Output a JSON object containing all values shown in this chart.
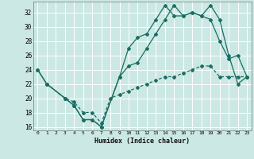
{
  "xlabel": "Humidex (Indice chaleur)",
  "bg_color": "#cbe8e4",
  "line_color": "#1a6e62",
  "grid_color": "#ffffff",
  "xlim": [
    -0.5,
    23.5
  ],
  "ylim": [
    15.5,
    33.5
  ],
  "xticks": [
    0,
    1,
    2,
    3,
    4,
    5,
    6,
    7,
    8,
    9,
    10,
    11,
    12,
    13,
    14,
    15,
    16,
    17,
    18,
    19,
    20,
    21,
    22,
    23
  ],
  "yticks": [
    16,
    18,
    20,
    22,
    24,
    26,
    28,
    30,
    32
  ],
  "series": {
    "line1": {
      "x": [
        0,
        1,
        3,
        4,
        5,
        6,
        7,
        9,
        10,
        11,
        12,
        13,
        14,
        15,
        16,
        17,
        18,
        19,
        20,
        21,
        22,
        23
      ],
      "y": [
        24,
        22,
        20,
        19,
        17,
        17,
        16,
        23,
        27,
        28.5,
        29,
        31,
        33,
        31.5,
        31.5,
        32,
        31.5,
        31,
        28,
        25.5,
        26,
        23
      ]
    },
    "line2": {
      "x": [
        0,
        1,
        3,
        4,
        5,
        6,
        7,
        9,
        10,
        11,
        12,
        13,
        14,
        15,
        16,
        17,
        18,
        19,
        20,
        21,
        22,
        23
      ],
      "y": [
        24,
        22,
        20,
        19,
        17,
        17,
        16,
        23,
        24.5,
        25,
        27,
        29,
        31,
        33,
        31.5,
        32,
        31.5,
        33,
        31,
        26,
        22,
        23
      ]
    },
    "line3": {
      "x": [
        1,
        3,
        4,
        5,
        6,
        7,
        8,
        9,
        10,
        11,
        12,
        13,
        14,
        15,
        16,
        17,
        18,
        19,
        20,
        21,
        22,
        23
      ],
      "y": [
        22,
        20,
        19.5,
        18,
        18,
        16.5,
        20,
        20.5,
        21,
        21.5,
        22,
        22.5,
        23,
        23,
        23.5,
        24,
        24.5,
        24.5,
        23,
        23,
        23,
        23
      ]
    }
  }
}
